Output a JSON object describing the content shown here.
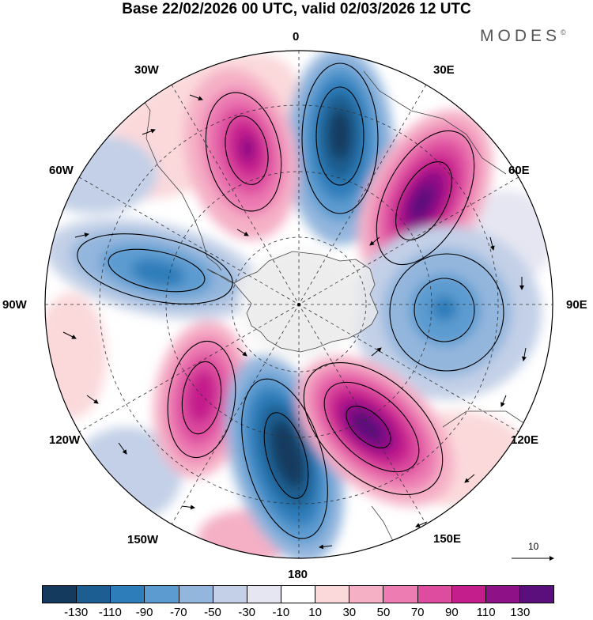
{
  "title": "Base 22/02/2026 00 UTC, valid 02/03/2026 12 UTC",
  "brand": {
    "name": "MODES",
    "mark": "©"
  },
  "longitude_labels": {
    "north": "0",
    "ne30": "30E",
    "ne60": "60E",
    "east": "90E",
    "se120": "120E",
    "se150": "150E",
    "south": "180",
    "sw150": "150W",
    "sw120": "120W",
    "west": "90W",
    "nw60": "60W",
    "nw30": "30W"
  },
  "reference_vector": {
    "label": "10"
  },
  "colorbar": {
    "colors": [
      "#143a5e",
      "#1c5e91",
      "#2d7dba",
      "#5c9bd0",
      "#93b6dd",
      "#c3d0e7",
      "#e6e6f2",
      "#ffffff",
      "#fbd9db",
      "#f5b0c6",
      "#ec7cb2",
      "#dd4c9f",
      "#c41d8c",
      "#8f1187",
      "#5b0f7c"
    ],
    "tick_labels": [
      "-130",
      "-110",
      "-90",
      "-70",
      "-50",
      "-30",
      "-10",
      "10",
      "30",
      "50",
      "70",
      "90",
      "110",
      "130"
    ]
  }
}
